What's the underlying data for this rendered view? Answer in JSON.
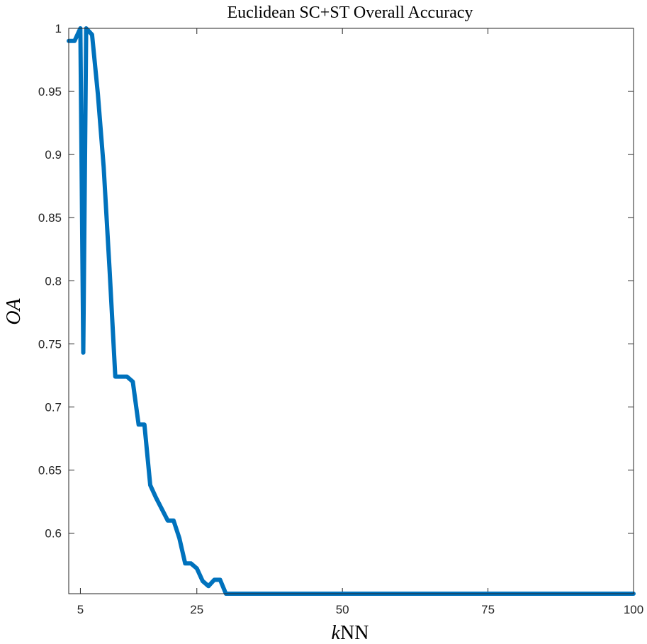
{
  "chart_data": {
    "type": "line",
    "title": "Euclidean SC+ST Overall Accuracy",
    "xlabel_italic": "k",
    "xlabel_rest": "NN",
    "ylabel": "OA",
    "xlim": [
      3,
      100
    ],
    "ylim": [
      0.552,
      1.0
    ],
    "x_ticks": [
      5,
      25,
      50,
      75,
      100
    ],
    "y_ticks": [
      0.6,
      0.65,
      0.7,
      0.75,
      0.8,
      0.85,
      0.9,
      0.95,
      1
    ],
    "grid": false,
    "line_color": "#0072BD",
    "series": [
      {
        "x": [
          3,
          4,
          5,
          5.5,
          6,
          7,
          8,
          9,
          10,
          11,
          12,
          13,
          14,
          15,
          16,
          17,
          18,
          19,
          20,
          21,
          22,
          23,
          24,
          25,
          26,
          27,
          28,
          29,
          30,
          100
        ],
        "y": [
          0.99,
          0.99,
          1.0,
          0.743,
          1.0,
          0.995,
          0.948,
          0.89,
          0.81,
          0.724,
          0.724,
          0.724,
          0.72,
          0.686,
          0.686,
          0.638,
          0.628,
          0.619,
          0.61,
          0.61,
          0.596,
          0.576,
          0.576,
          0.572,
          0.562,
          0.558,
          0.563,
          0.563,
          0.552,
          0.552
        ]
      }
    ]
  }
}
